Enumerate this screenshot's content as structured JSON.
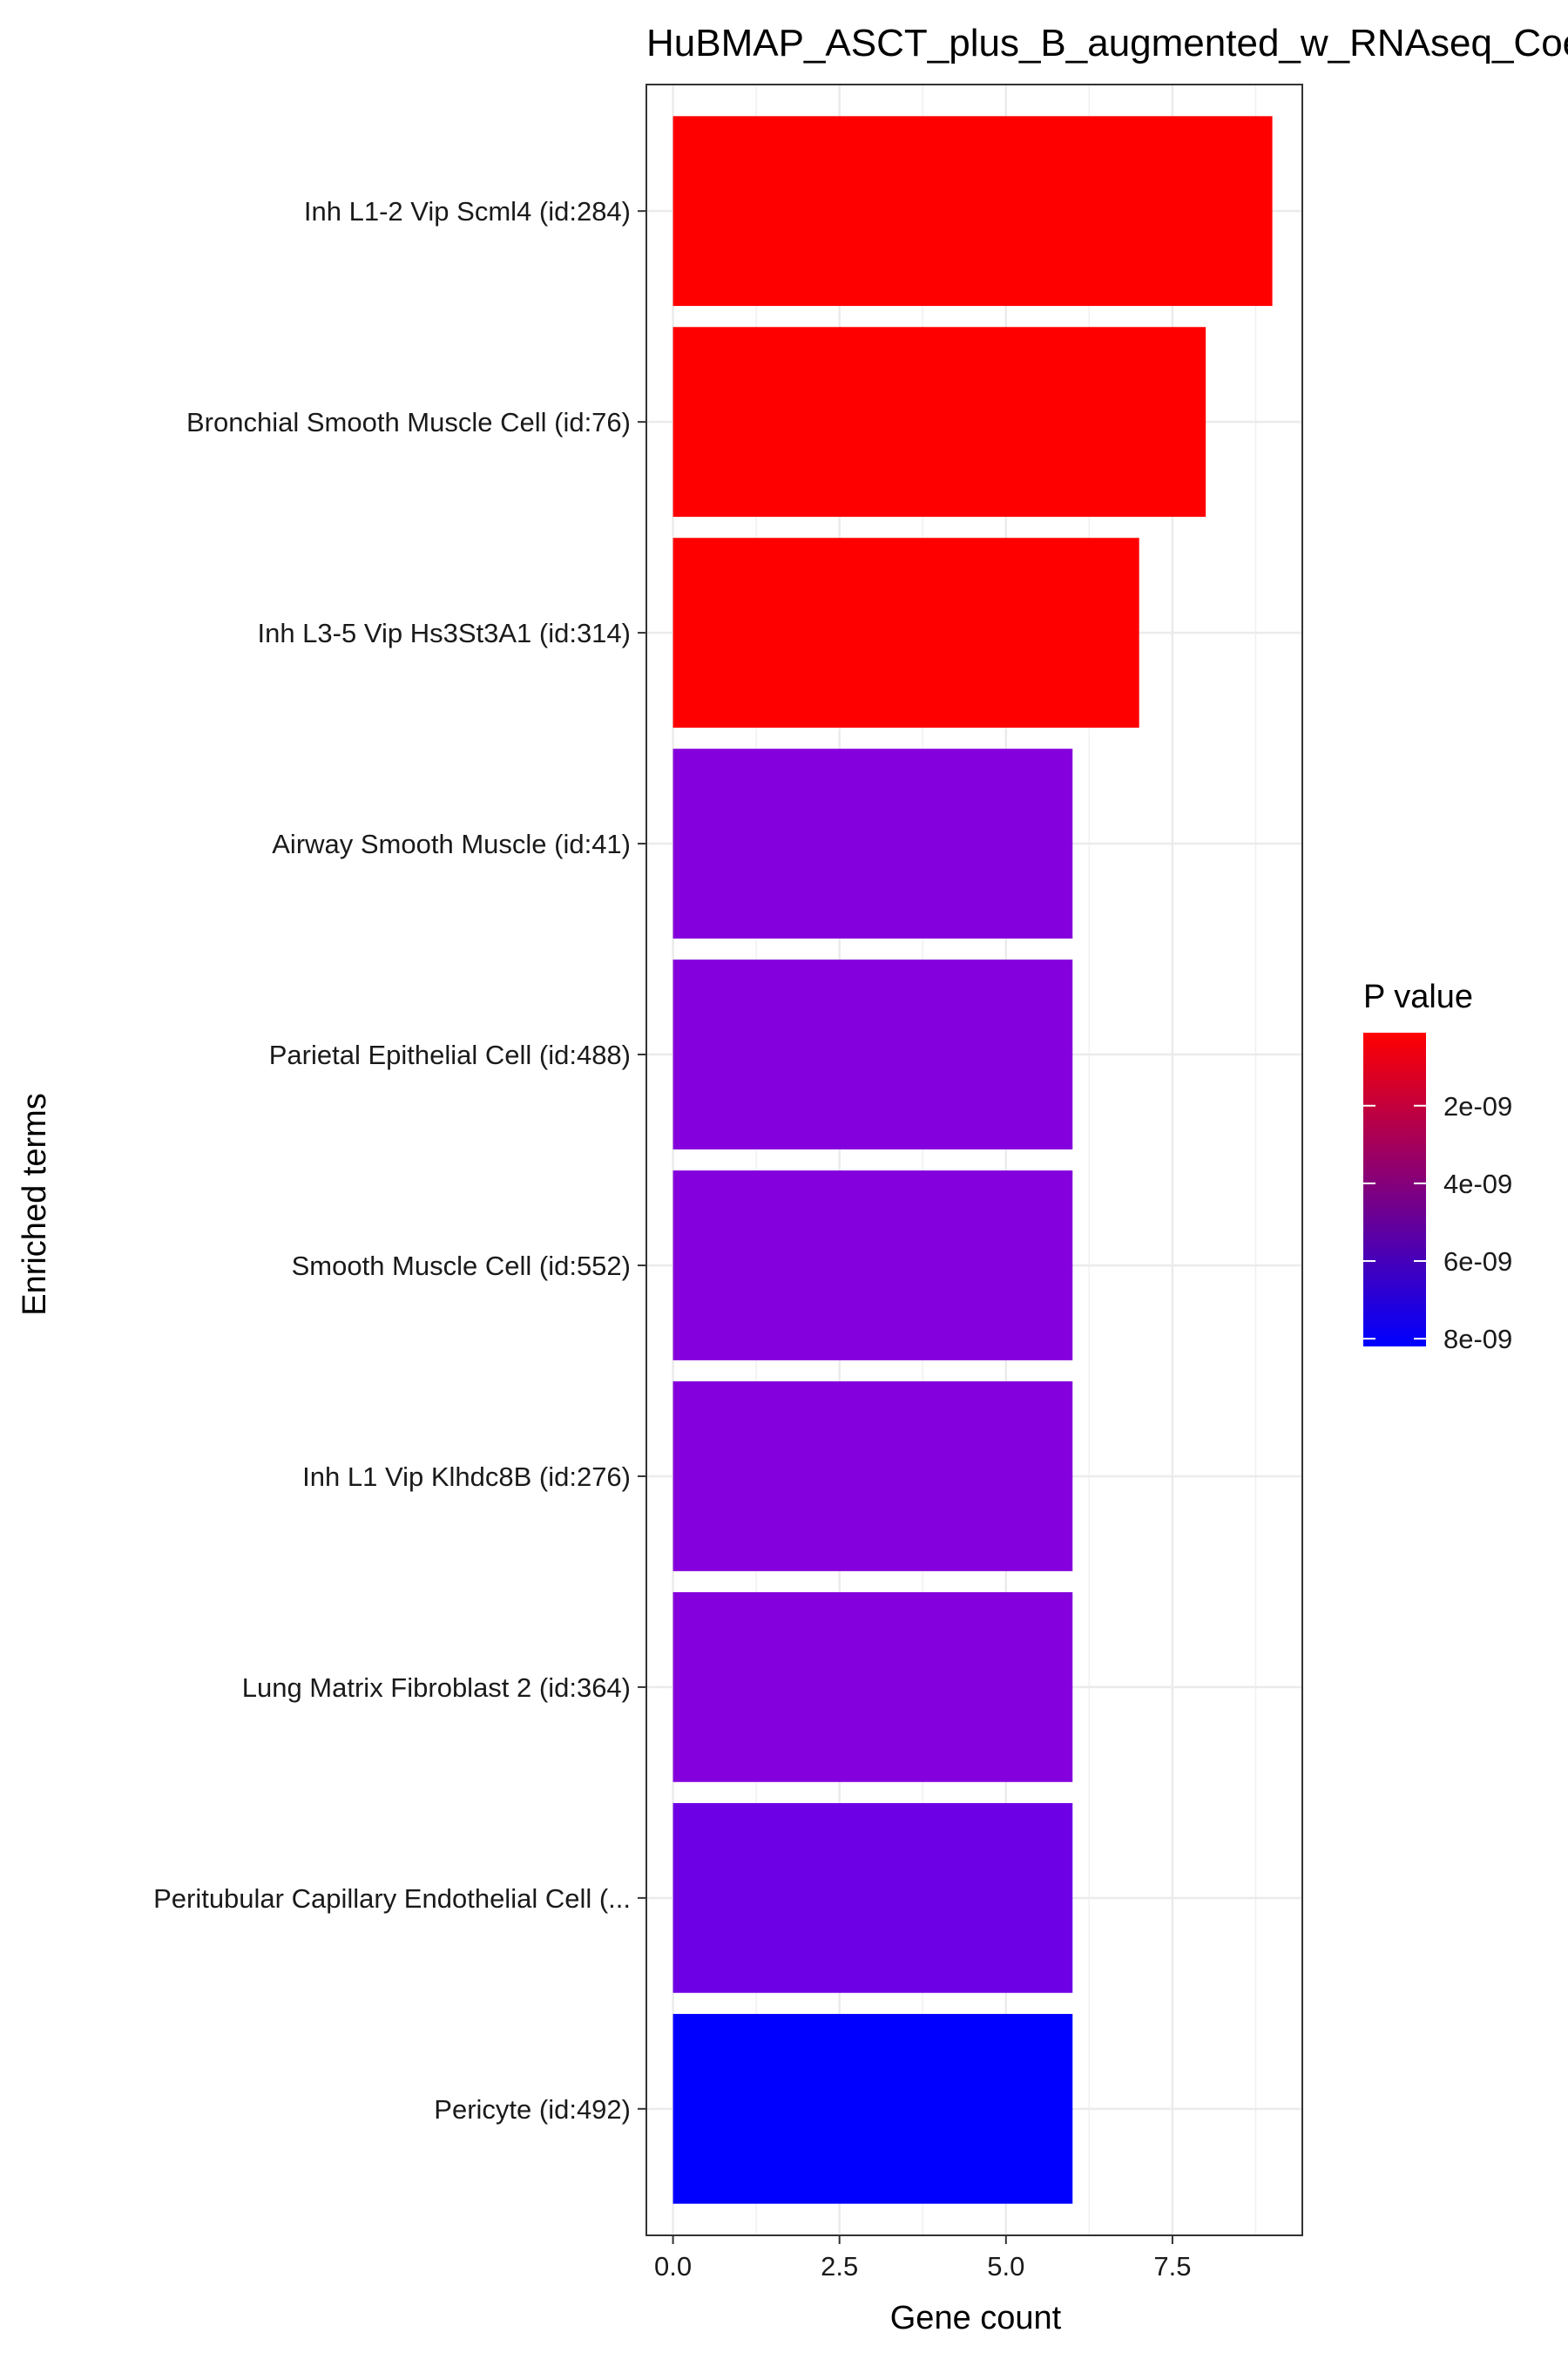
{
  "chart_data": {
    "type": "bar",
    "orientation": "horizontal",
    "title": "HuBMAP_ASCT_plus_B_augmented_w_RNAseq_Coexpression",
    "xlabel": "Gene count",
    "ylabel": "Enriched terms",
    "xlim": [
      -0.4,
      9.45
    ],
    "xticks": [
      0.0,
      2.5,
      5.0,
      7.5
    ],
    "xtick_labels": [
      "0.0",
      "2.5",
      "5.0",
      "7.5"
    ],
    "grid": true,
    "categories": [
      "Inh L1-2 Vip Scml4 (id:284)",
      "Bronchial Smooth Muscle Cell (id:76)",
      "Inh L3-5 Vip Hs3St3A1 (id:314)",
      "Airway Smooth Muscle (id:41)",
      "Parietal Epithelial Cell (id:488)",
      "Smooth Muscle Cell (id:552)",
      "Inh L1 Vip Klhdc8B (id:276)",
      "Lung Matrix Fibroblast 2 (id:364)",
      "Peritubular Capillary Endothelial Cell (...",
      "Pericyte (id:492)"
    ],
    "values": [
      9,
      8,
      7,
      6,
      6,
      6,
      6,
      6,
      6,
      6
    ],
    "p_values": [
      1.2e-10,
      1.5e-10,
      2e-10,
      6.4e-09,
      6.4e-09,
      6.4e-09,
      6.4e-09,
      6.4e-09,
      7e-09,
      8.2e-09
    ],
    "colors": [
      "#ff0000",
      "#ff0000",
      "#ff0000",
      "#8400dc",
      "#8400dc",
      "#8400dc",
      "#8400dc",
      "#8400dc",
      "#6e00e6",
      "#0000ff"
    ],
    "legend": {
      "title": "P value",
      "placement": "right",
      "low_color": "#ff0000",
      "high_color": "#0000ff",
      "range": [
        1.2e-10,
        8.2e-09
      ],
      "ticks": [
        2e-09,
        4e-09,
        6e-09,
        8e-09
      ],
      "tick_labels": [
        "2e-09",
        "4e-09",
        "6e-09",
        "8e-09"
      ]
    }
  }
}
